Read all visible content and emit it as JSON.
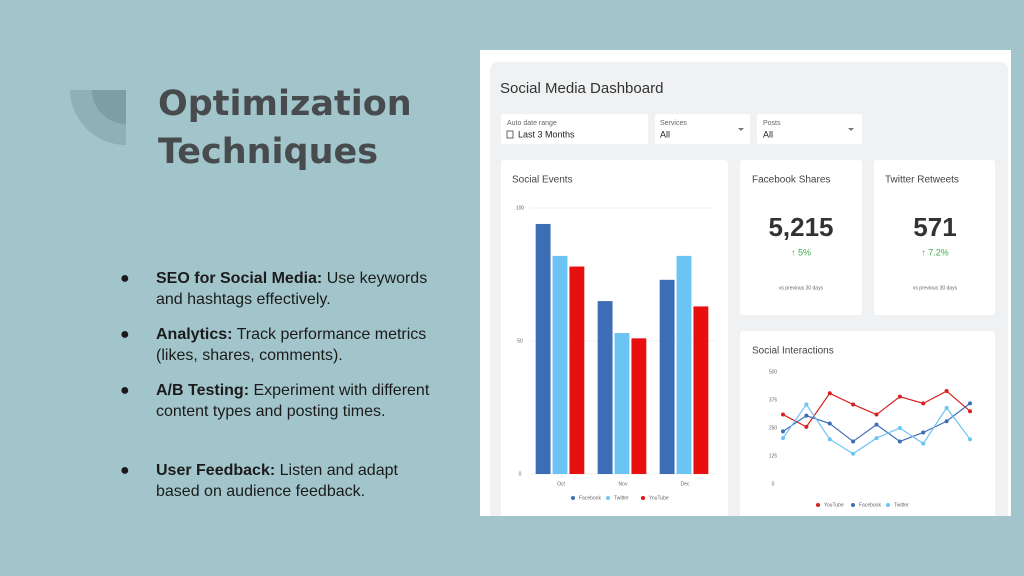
{
  "title": "Optimization Techniques",
  "bullets": [
    {
      "label": "SEO for Social Media:",
      "text": "Use keywords and hashtags effectively."
    },
    {
      "label": "Analytics:",
      "text": "Track performance metrics (likes, shares, comments)."
    },
    {
      "label": "A/B Testing:",
      "text": "Experiment with different content types and posting times."
    },
    {
      "label": "User Feedback:",
      "text": "Listen and adapt based on audience feedback."
    }
  ],
  "dashboard": {
    "title": "Social Media Dashboard",
    "filters": [
      {
        "label": "Auto date range",
        "value": "Last 3 Months"
      },
      {
        "label": "Services",
        "value": "All"
      },
      {
        "label": "Posts",
        "value": "All"
      }
    ],
    "kpis": [
      {
        "title": "Facebook Shares",
        "value": "5,215",
        "change": "↑ 5%",
        "note": "vs previous 30 days"
      },
      {
        "title": "Twitter Retweets",
        "value": "571",
        "change": "↑ 7.2%",
        "note": "vs previous 30 days"
      }
    ],
    "social_events": {
      "type": "bar",
      "title": "Social Events",
      "categories": [
        "Oct",
        "Nov",
        "Dec"
      ],
      "series": [
        {
          "name": "Facebook",
          "color": "#3d6db5",
          "values": [
            94,
            65,
            73
          ]
        },
        {
          "name": "Twitter",
          "color": "#6cc4f4",
          "values": [
            82,
            53,
            82
          ]
        },
        {
          "name": "YouTube",
          "color": "#e8100f",
          "values": [
            78,
            51,
            63
          ]
        }
      ],
      "ylim": [
        0,
        100
      ],
      "yticks": [
        0,
        50,
        100
      ],
      "grid": true
    },
    "social_interactions": {
      "type": "line",
      "title": "Social Interactions",
      "categories": [
        null,
        null,
        null,
        null,
        null,
        null,
        null,
        null,
        null
      ],
      "series": [
        {
          "name": "YouTube",
          "color": "#d9201f",
          "values": [
            310,
            255,
            405,
            355,
            310,
            390,
            360,
            415,
            325
          ]
        },
        {
          "name": "Facebook",
          "color": "#3d6db5",
          "values": [
            235,
            305,
            270,
            190,
            265,
            190,
            230,
            280,
            360
          ]
        },
        {
          "name": "Twitter",
          "color": "#6cc4f4",
          "values": [
            205,
            355,
            200,
            135,
            205,
            250,
            180,
            340,
            200
          ]
        }
      ],
      "ylim": [
        0,
        500
      ],
      "yticks": [
        0,
        125,
        250,
        375,
        500
      ],
      "grid": false
    }
  }
}
